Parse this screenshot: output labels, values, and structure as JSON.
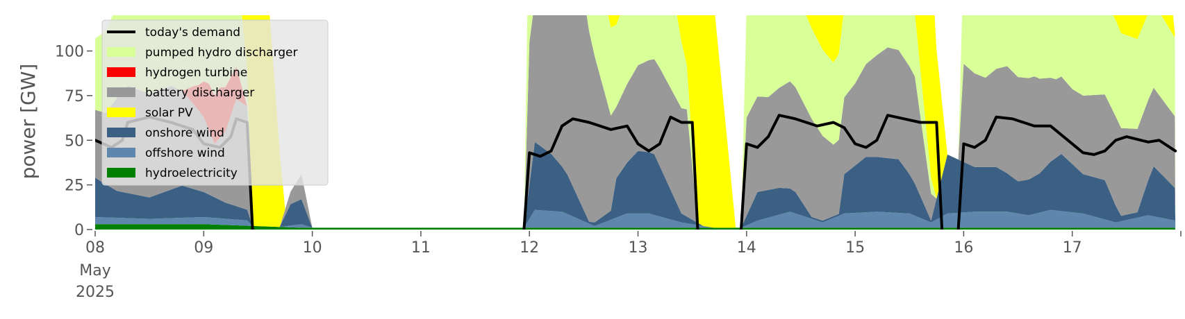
{
  "chart_data": {
    "type": "area",
    "title": "",
    "xlabel": "",
    "ylabel": "power [GW]",
    "x_ticks": [
      {
        "day": 8,
        "label": "08",
        "sub": [
          "May",
          "2025"
        ]
      },
      {
        "day": 9,
        "label": "09"
      },
      {
        "day": 10,
        "label": "10"
      },
      {
        "day": 11,
        "label": "11"
      },
      {
        "day": 12,
        "label": "12"
      },
      {
        "day": 13,
        "label": "13"
      },
      {
        "day": 14,
        "label": "14"
      },
      {
        "day": 15,
        "label": "15"
      },
      {
        "day": 16,
        "label": "16"
      },
      {
        "day": 17,
        "label": "17"
      }
    ],
    "xlim": [
      "2025-05-08",
      "2025-05-18"
    ],
    "ylim": [
      0,
      120
    ],
    "y_ticks": [
      0,
      25,
      50,
      75,
      100
    ],
    "grid": false,
    "legend_position": "top-left",
    "series_order_bottom_to_top": [
      "hydroelectricity",
      "offshore wind",
      "onshore wind",
      "battery discharger",
      "hydrogen turbine",
      "pumped hydro discharger",
      "solar PV"
    ],
    "series": [
      {
        "name": "hydroelectricity",
        "color": "#008000",
        "points": [
          [
            8.0,
            3
          ],
          [
            8.5,
            3
          ],
          [
            9.0,
            3
          ],
          [
            9.45,
            2
          ],
          [
            9.9,
            1
          ],
          [
            12.0,
            1
          ],
          [
            14.0,
            1
          ],
          [
            17.95,
            1
          ]
        ]
      },
      {
        "name": "offshore wind",
        "color": "#5f87ad",
        "points": [
          [
            8.0,
            4
          ],
          [
            8.5,
            3
          ],
          [
            9.0,
            4
          ],
          [
            9.4,
            3
          ],
          [
            9.45,
            0
          ],
          [
            9.7,
            0
          ],
          [
            9.9,
            2
          ],
          [
            10.0,
            0
          ],
          [
            11.95,
            0
          ],
          [
            12.05,
            10
          ],
          [
            12.3,
            9
          ],
          [
            12.6,
            1
          ],
          [
            12.9,
            8
          ],
          [
            13.1,
            8
          ],
          [
            13.4,
            3
          ],
          [
            13.7,
            0
          ],
          [
            13.95,
            0
          ],
          [
            14.1,
            4
          ],
          [
            14.4,
            9
          ],
          [
            14.7,
            3
          ],
          [
            14.9,
            8
          ],
          [
            15.2,
            9
          ],
          [
            15.5,
            8
          ],
          [
            15.7,
            3
          ],
          [
            15.85,
            8
          ],
          [
            16.1,
            9
          ],
          [
            16.4,
            9
          ],
          [
            16.6,
            7
          ],
          [
            16.8,
            10
          ],
          [
            17.1,
            8
          ],
          [
            17.4,
            3
          ],
          [
            17.7,
            7
          ],
          [
            17.95,
            4
          ]
        ]
      },
      {
        "name": "onshore wind",
        "color": "#3b6083",
        "points": [
          [
            8.0,
            22
          ],
          [
            8.2,
            15
          ],
          [
            8.5,
            12
          ],
          [
            8.8,
            18
          ],
          [
            9.0,
            14
          ],
          [
            9.2,
            9
          ],
          [
            9.4,
            6
          ],
          [
            9.45,
            0
          ],
          [
            9.7,
            0
          ],
          [
            9.8,
            12
          ],
          [
            9.9,
            14
          ],
          [
            10.0,
            0
          ],
          [
            11.95,
            0
          ],
          [
            12.05,
            38
          ],
          [
            12.2,
            32
          ],
          [
            12.35,
            22
          ],
          [
            12.55,
            1
          ],
          [
            12.75,
            5
          ],
          [
            12.8,
            22
          ],
          [
            13.0,
            35
          ],
          [
            13.15,
            34
          ],
          [
            13.4,
            5
          ],
          [
            13.6,
            0
          ],
          [
            13.95,
            0
          ],
          [
            14.1,
            16
          ],
          [
            14.3,
            15
          ],
          [
            14.45,
            12
          ],
          [
            14.6,
            1
          ],
          [
            14.85,
            1
          ],
          [
            14.9,
            22
          ],
          [
            15.1,
            31
          ],
          [
            15.4,
            30
          ],
          [
            15.55,
            18
          ],
          [
            15.7,
            1
          ],
          [
            15.85,
            33
          ],
          [
            16.1,
            25
          ],
          [
            16.3,
            25
          ],
          [
            16.5,
            18
          ],
          [
            16.7,
            22
          ],
          [
            16.9,
            32
          ],
          [
            17.1,
            22
          ],
          [
            17.3,
            22
          ],
          [
            17.45,
            3
          ],
          [
            17.6,
            3
          ],
          [
            17.75,
            28
          ],
          [
            17.95,
            18
          ]
        ]
      },
      {
        "name": "battery discharger",
        "color": "#999999",
        "points": [
          [
            8.0,
            38
          ],
          [
            8.1,
            40
          ],
          [
            8.2,
            52
          ],
          [
            8.3,
            60
          ],
          [
            8.5,
            58
          ],
          [
            8.7,
            58
          ],
          [
            8.9,
            48
          ],
          [
            9.0,
            42
          ],
          [
            9.1,
            30
          ],
          [
            9.2,
            40
          ],
          [
            9.3,
            60
          ],
          [
            9.4,
            58
          ],
          [
            9.45,
            0
          ],
          [
            9.7,
            0
          ],
          [
            9.9,
            14
          ],
          [
            10.0,
            0
          ],
          [
            11.95,
            0
          ],
          [
            12.0,
            80
          ],
          [
            12.2,
            78
          ],
          [
            12.3,
            125
          ],
          [
            12.5,
            120
          ],
          [
            12.8,
            40
          ],
          [
            13.0,
            48
          ],
          [
            13.2,
            55
          ],
          [
            13.45,
            60
          ],
          [
            13.55,
            0
          ],
          [
            13.95,
            0
          ],
          [
            14.0,
            55
          ],
          [
            14.2,
            52
          ],
          [
            14.4,
            60
          ],
          [
            14.6,
            55
          ],
          [
            14.8,
            40
          ],
          [
            15.0,
            46
          ],
          [
            15.1,
            52
          ],
          [
            15.3,
            62
          ],
          [
            15.55,
            60
          ],
          [
            15.75,
            0
          ],
          [
            15.95,
            0
          ],
          [
            16.0,
            55
          ],
          [
            16.2,
            50
          ],
          [
            16.4,
            60
          ],
          [
            16.65,
            56
          ],
          [
            16.85,
            44
          ],
          [
            17.0,
            42
          ],
          [
            17.2,
            46
          ],
          [
            17.4,
            50
          ],
          [
            17.7,
            45
          ],
          [
            17.95,
            40
          ]
        ]
      },
      {
        "name": "hydrogen turbine",
        "color": "#ff0000",
        "points": [
          [
            8.8,
            0
          ],
          [
            8.95,
            14
          ],
          [
            9.05,
            26
          ],
          [
            9.15,
            28
          ],
          [
            9.3,
            18
          ],
          [
            9.4,
            0
          ]
        ]
      },
      {
        "name": "pumped hydro discharger",
        "color": "#d9ff99",
        "points": [
          [
            8.0,
            40
          ],
          [
            8.2,
            52
          ],
          [
            8.5,
            60
          ],
          [
            9.0,
            46
          ],
          [
            9.3,
            62
          ],
          [
            9.45,
            0
          ],
          [
            9.95,
            0
          ],
          [
            11.95,
            0
          ],
          [
            12.0,
            88
          ],
          [
            12.2,
            85
          ],
          [
            12.8,
            46
          ],
          [
            13.0,
            52
          ],
          [
            13.3,
            62
          ],
          [
            13.55,
            0
          ],
          [
            13.95,
            0
          ],
          [
            14.0,
            62
          ],
          [
            14.2,
            60
          ],
          [
            14.8,
            46
          ],
          [
            15.0,
            55
          ],
          [
            15.4,
            62
          ],
          [
            15.75,
            0
          ],
          [
            15.95,
            0
          ],
          [
            16.0,
            62
          ],
          [
            16.2,
            57
          ],
          [
            16.8,
            50
          ],
          [
            17.0,
            48
          ],
          [
            17.4,
            54
          ],
          [
            17.95,
            44
          ]
        ]
      },
      {
        "name": "solar PV",
        "color": "#ffff00",
        "points": [
          [
            8.2,
            0
          ],
          [
            8.25,
            60
          ],
          [
            8.35,
            125
          ],
          [
            8.6,
            125
          ],
          [
            8.75,
            60
          ],
          [
            8.85,
            0
          ],
          [
            9.2,
            0
          ],
          [
            9.3,
            80
          ],
          [
            9.35,
            125
          ],
          [
            9.6,
            125
          ],
          [
            9.75,
            0
          ],
          [
            12.3,
            0
          ],
          [
            12.32,
            125
          ],
          [
            12.62,
            125
          ],
          [
            12.8,
            40
          ],
          [
            13.3,
            40
          ],
          [
            13.35,
            125
          ],
          [
            13.7,
            125
          ],
          [
            13.9,
            0
          ],
          [
            14.3,
            0
          ],
          [
            14.35,
            125
          ],
          [
            14.7,
            125
          ],
          [
            14.9,
            42
          ],
          [
            15.3,
            42
          ],
          [
            15.35,
            125
          ],
          [
            15.7,
            125
          ],
          [
            15.85,
            0
          ],
          [
            16.3,
            0
          ],
          [
            16.32,
            125
          ],
          [
            16.7,
            125
          ],
          [
            16.9,
            44
          ],
          [
            17.25,
            44
          ],
          [
            17.3,
            125
          ],
          [
            17.7,
            125
          ],
          [
            17.95,
            0
          ]
        ]
      }
    ],
    "lines": [
      {
        "name": "today's demand",
        "color": "#000000",
        "segments": [
          [
            [
              8.0,
              50
            ],
            [
              8.15,
              46
            ],
            [
              8.25,
              50
            ],
            [
              8.3,
              60
            ],
            [
              8.5,
              63
            ],
            [
              8.7,
              60
            ],
            [
              8.9,
              56
            ],
            [
              9.0,
              48
            ],
            [
              9.15,
              46
            ],
            [
              9.25,
              52
            ],
            [
              9.3,
              62
            ],
            [
              9.4,
              60
            ],
            [
              9.45,
              0
            ]
          ],
          [
            [
              11.95,
              0
            ],
            [
              12.0,
              43
            ],
            [
              12.1,
              41
            ],
            [
              12.2,
              44
            ],
            [
              12.3,
              58
            ],
            [
              12.4,
              62
            ],
            [
              12.55,
              60
            ],
            [
              12.75,
              56
            ],
            [
              12.9,
              58
            ],
            [
              13.0,
              48
            ],
            [
              13.1,
              44
            ],
            [
              13.2,
              48
            ],
            [
              13.3,
              63
            ],
            [
              13.4,
              60
            ],
            [
              13.5,
              60
            ],
            [
              13.55,
              0
            ]
          ],
          [
            [
              13.95,
              0
            ],
            [
              14.0,
              48
            ],
            [
              14.1,
              46
            ],
            [
              14.2,
              52
            ],
            [
              14.3,
              64
            ],
            [
              14.45,
              62
            ],
            [
              14.65,
              58
            ],
            [
              14.8,
              60
            ],
            [
              14.9,
              57
            ],
            [
              15.0,
              48
            ],
            [
              15.1,
              46
            ],
            [
              15.2,
              50
            ],
            [
              15.3,
              64
            ],
            [
              15.45,
              62
            ],
            [
              15.6,
              60
            ],
            [
              15.75,
              60
            ],
            [
              15.8,
              0
            ]
          ],
          [
            [
              15.95,
              0
            ],
            [
              16.0,
              48
            ],
            [
              16.1,
              46
            ],
            [
              16.2,
              50
            ],
            [
              16.3,
              63
            ],
            [
              16.45,
              62
            ],
            [
              16.65,
              58
            ],
            [
              16.8,
              58
            ],
            [
              17.0,
              48
            ],
            [
              17.1,
              43
            ],
            [
              17.2,
              42
            ],
            [
              17.3,
              44
            ],
            [
              17.4,
              50
            ],
            [
              17.5,
              52
            ],
            [
              17.7,
              49
            ],
            [
              17.8,
              50
            ],
            [
              17.95,
              44
            ]
          ]
        ]
      }
    ]
  },
  "legend": {
    "items": [
      {
        "label": "today's demand",
        "color": "#000000",
        "kind": "line"
      },
      {
        "label": "pumped hydro discharger",
        "color": "#d9ff99",
        "kind": "patch"
      },
      {
        "label": "hydrogen turbine",
        "color": "#ff0000",
        "kind": "patch"
      },
      {
        "label": "battery discharger",
        "color": "#999999",
        "kind": "patch"
      },
      {
        "label": "solar PV",
        "color": "#ffff00",
        "kind": "patch"
      },
      {
        "label": "onshore wind",
        "color": "#3b6083",
        "kind": "patch"
      },
      {
        "label": "offshore wind",
        "color": "#5f87ad",
        "kind": "patch"
      },
      {
        "label": "hydroelectricity",
        "color": "#008000",
        "kind": "patch"
      }
    ]
  }
}
